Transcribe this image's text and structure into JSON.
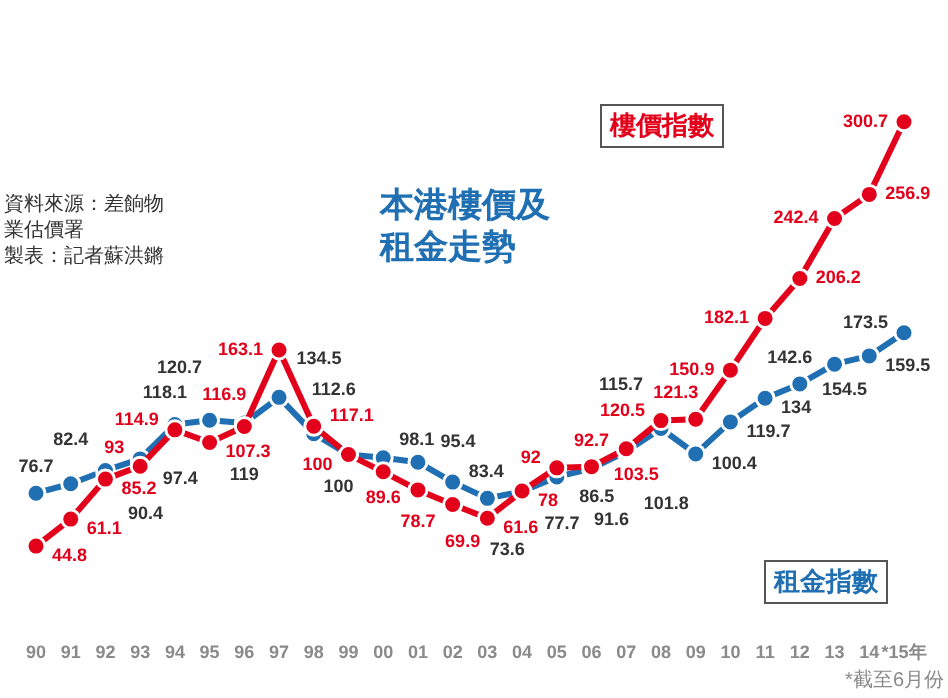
{
  "chart_data": {
    "type": "line",
    "title": "本港樓價及租金走勢",
    "categories": [
      "90",
      "91",
      "92",
      "93",
      "94",
      "95",
      "96",
      "97",
      "98",
      "99",
      "00",
      "01",
      "02",
      "03",
      "04",
      "05",
      "06",
      "07",
      "08",
      "09",
      "10",
      "11",
      "12",
      "13",
      "14",
      "*15年"
    ],
    "series": [
      {
        "name": "樓價指數",
        "color": "#e3001b",
        "values": [
          44.8,
          61.1,
          85.2,
          93,
          114.9,
          107.3,
          116.9,
          163.1,
          117.1,
          100,
          89.6,
          78.7,
          69.9,
          61.6,
          78,
          92,
          92.7,
          103.5,
          120.5,
          121.3,
          150.9,
          182.1,
          206.2,
          242.4,
          256.9,
          300.7
        ]
      },
      {
        "name": "租金指數",
        "color": "#1f6fb2",
        "values": [
          76.7,
          82.4,
          90.4,
          97.4,
          118.1,
          120.7,
          119,
          134.5,
          112.6,
          100,
          98.1,
          95.4,
          83.4,
          73.6,
          77.7,
          86.5,
          91.6,
          101.8,
          115.7,
          100.4,
          119.7,
          134,
          142.6,
          154.5,
          159.5,
          173.5
        ]
      }
    ],
    "data_labels": true,
    "marker": "circle",
    "line_style": "solid",
    "legend": false,
    "grid": false,
    "tick_labels": "x",
    "annotations": [
      "資料來源：差餉物業估價署",
      "製表：記者蘇洪鏘",
      "*截至6月份"
    ]
  }
}
